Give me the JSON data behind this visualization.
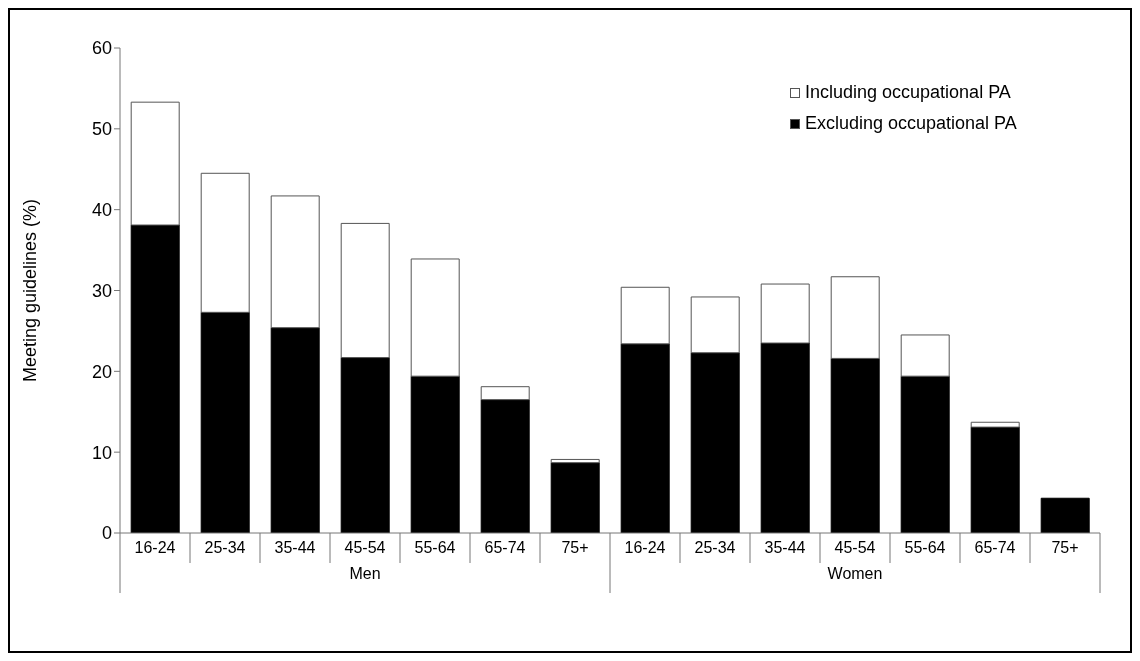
{
  "chart_data": {
    "type": "bar",
    "stacked": true,
    "ylabel": "Meeting guidelines (%)",
    "categories": [
      "16-24",
      "25-34",
      "35-44",
      "45-54",
      "55-64",
      "65-74",
      "75+",
      "16-24",
      "25-34",
      "35-44",
      "45-54",
      "55-64",
      "65-74",
      "75+"
    ],
    "series": [
      {
        "name": "Excluding occupational PA",
        "color": "#000000",
        "values": [
          38.1,
          27.3,
          25.4,
          21.7,
          19.4,
          16.5,
          8.7,
          23.4,
          22.3,
          23.5,
          21.6,
          19.4,
          13.1,
          4.3
        ]
      },
      {
        "name": "Including occupational PA",
        "color": "#ffffff",
        "values": [
          15.2,
          17.2,
          16.3,
          16.6,
          14.5,
          1.6,
          0.4,
          7.0,
          6.9,
          7.3,
          10.1,
          5.1,
          0.6,
          0
        ]
      }
    ],
    "ylim": [
      0,
      60
    ],
    "yticks": [
      0,
      10,
      20,
      30,
      40,
      50,
      60
    ],
    "grid": false,
    "legend": "top right",
    "annotations": [
      "Men",
      "Women"
    ]
  }
}
